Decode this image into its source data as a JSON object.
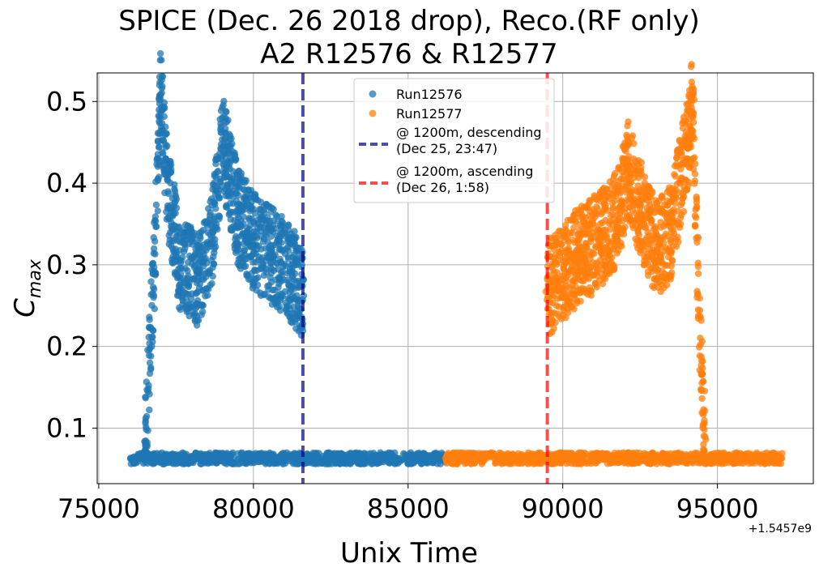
{
  "chart_data": {
    "type": "scatter",
    "title_lines": [
      "SPICE (Dec. 26 2018 drop), Reco.(RF only)",
      "A2 R12576 & R12577"
    ],
    "xlabel": "Unix Time",
    "ylabel": "C",
    "ylabel_sub": "max",
    "x_offset_label": "+1.5457e9",
    "x_offset": 1545700000,
    "xlim": [
      74950,
      98100
    ],
    "ylim": [
      0.032,
      0.535
    ],
    "xticks": [
      75000,
      80000,
      85000,
      90000,
      95000
    ],
    "xtick_labels": [
      "75000",
      "80000",
      "85000",
      "90000",
      "95000"
    ],
    "yticks": [
      0.1,
      0.2,
      0.3,
      0.4,
      0.5
    ],
    "ytick_labels": [
      "0.1",
      "0.2",
      "0.3",
      "0.4",
      "0.5"
    ],
    "grid": true,
    "legend_position": "top-center",
    "series": [
      {
        "name": "Run12576",
        "color": "#1f77b4",
        "marker": "circle",
        "x_range": [
          76000,
          86200
        ],
        "baseline_value": 0.063,
        "spike_x_range": [
          76500,
          81600
        ],
        "spike_profile": [
          {
            "x": 76500,
            "y": 0.08
          },
          {
            "x": 76800,
            "y": 0.3
          },
          {
            "x": 77000,
            "y": 0.51
          },
          {
            "x": 77200,
            "y": 0.4
          },
          {
            "x": 77600,
            "y": 0.3
          },
          {
            "x": 78200,
            "y": 0.28
          },
          {
            "x": 78700,
            "y": 0.34
          },
          {
            "x": 79000,
            "y": 0.45
          },
          {
            "x": 79500,
            "y": 0.36
          },
          {
            "x": 80000,
            "y": 0.33
          },
          {
            "x": 80600,
            "y": 0.31
          },
          {
            "x": 81200,
            "y": 0.29
          },
          {
            "x": 81600,
            "y": 0.27
          }
        ]
      },
      {
        "name": "Run12577",
        "color": "#ff7f0e",
        "marker": "circle",
        "x_range": [
          86200,
          97100
        ],
        "baseline_value": 0.063,
        "spike_x_range": [
          89500,
          94600
        ],
        "spike_profile": [
          {
            "x": 89500,
            "y": 0.27
          },
          {
            "x": 90000,
            "y": 0.29
          },
          {
            "x": 90500,
            "y": 0.31
          },
          {
            "x": 91200,
            "y": 0.33
          },
          {
            "x": 91800,
            "y": 0.36
          },
          {
            "x": 92100,
            "y": 0.42
          },
          {
            "x": 92500,
            "y": 0.37
          },
          {
            "x": 93000,
            "y": 0.32
          },
          {
            "x": 93500,
            "y": 0.34
          },
          {
            "x": 94000,
            "y": 0.44
          },
          {
            "x": 94200,
            "y": 0.5
          },
          {
            "x": 94400,
            "y": 0.25
          },
          {
            "x": 94600,
            "y": 0.08
          }
        ]
      }
    ],
    "vlines": [
      {
        "x": 81600,
        "color": "#000080",
        "label_lines": [
          "@ 1200m, descending",
          "(Dec 25, 23:47)"
        ]
      },
      {
        "x": 89500,
        "color": "#ff0000",
        "label_lines": [
          "@ 1200m, ascending",
          "(Dec 26, 1:58)"
        ]
      }
    ]
  }
}
